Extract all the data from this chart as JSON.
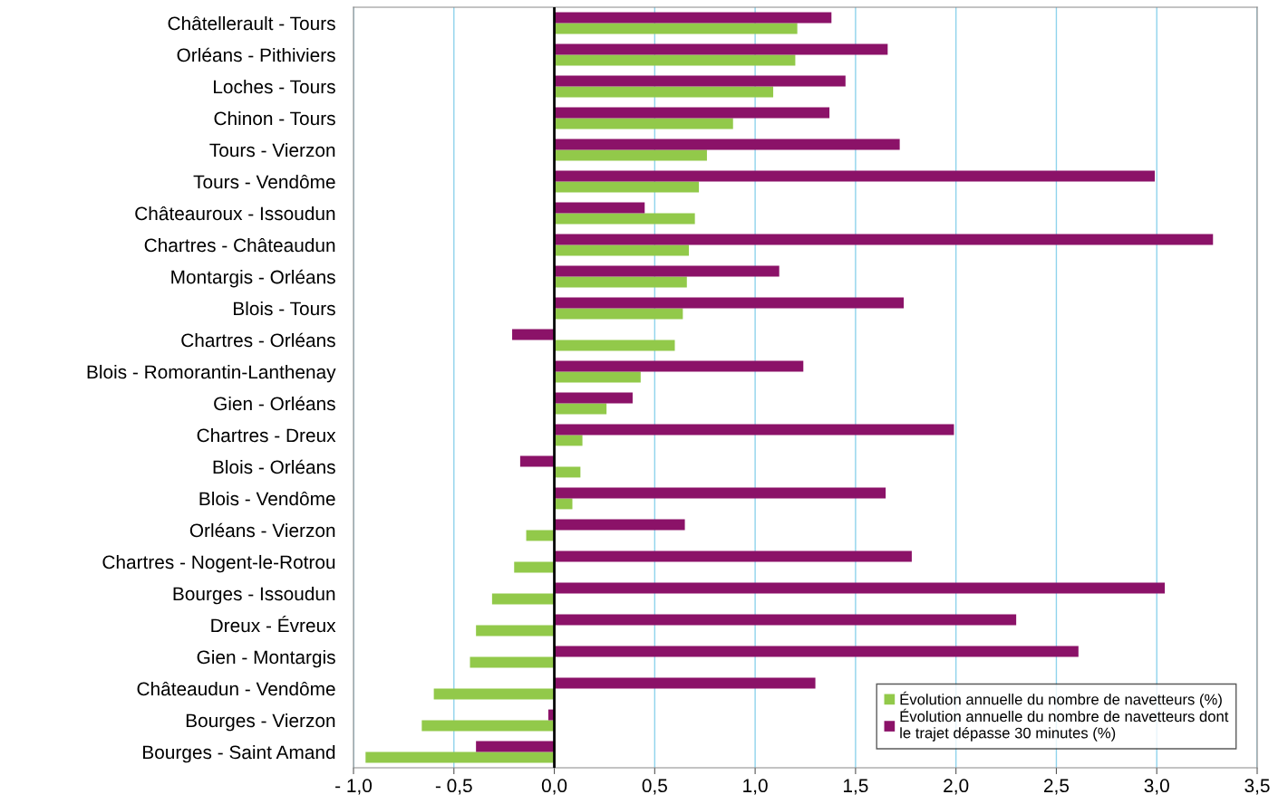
{
  "chart_data": {
    "type": "bar",
    "orientation": "horizontal",
    "categories": [
      "Châtellerault - Tours",
      "Orléans - Pithiviers",
      "Loches - Tours",
      "Chinon - Tours",
      "Tours - Vierzon",
      "Tours - Vendôme",
      "Châteauroux - Issoudun",
      "Chartres - Châteaudun",
      "Montargis - Orléans",
      "Blois - Tours",
      "Chartres - Orléans",
      "Blois - Romorantin-Lanthenay",
      "Gien - Orléans",
      "Chartres - Dreux",
      "Blois - Orléans",
      "Blois - Vendôme",
      "Orléans - Vierzon",
      "Chartres - Nogent-le-Rotrou",
      "Bourges - Issoudun",
      "Dreux - Évreux",
      "Gien - Montargis",
      "Châteaudun - Vendôme",
      "Bourges - Vierzon",
      "Bourges - Saint Amand"
    ],
    "series": [
      {
        "name": "Évolution annuelle du nombre de navetteurs (%)",
        "color": "#92c94a",
        "values": [
          1.21,
          1.2,
          1.09,
          0.89,
          0.76,
          0.72,
          0.7,
          0.67,
          0.66,
          0.64,
          0.6,
          0.43,
          0.26,
          0.14,
          0.13,
          0.09,
          -0.14,
          -0.2,
          -0.31,
          -0.39,
          -0.42,
          -0.6,
          -0.66,
          -0.94
        ]
      },
      {
        "name": "Évolution annuelle du nombre de navetteurs dont\nle trajet dépasse 30 minutes (%)",
        "color": "#8b1268",
        "values": [
          1.38,
          1.66,
          1.45,
          1.37,
          1.72,
          2.99,
          0.45,
          3.28,
          1.12,
          1.74,
          -0.21,
          1.24,
          0.39,
          1.99,
          -0.17,
          1.65,
          0.65,
          1.78,
          3.04,
          2.3,
          2.61,
          1.3,
          -0.03,
          -0.39
        ]
      }
    ],
    "xlim": [
      -1.0,
      3.5
    ],
    "xticks": [
      {
        "value": -1.0,
        "label": "- 1,0"
      },
      {
        "value": -0.5,
        "label": "- 0,5"
      },
      {
        "value": 0,
        "label": "0,0"
      },
      {
        "value": 0.5,
        "label": "0,5"
      },
      {
        "value": 1.0,
        "label": "1,0"
      },
      {
        "value": 1.5,
        "label": "1,5"
      },
      {
        "value": 2.0,
        "label": "2,0"
      },
      {
        "value": 2.5,
        "label": "2,5"
      },
      {
        "value": 3.0,
        "label": "3,0"
      },
      {
        "value": 3.5,
        "label": "3,5"
      }
    ],
    "grid": "x",
    "legend": "bottom right"
  }
}
